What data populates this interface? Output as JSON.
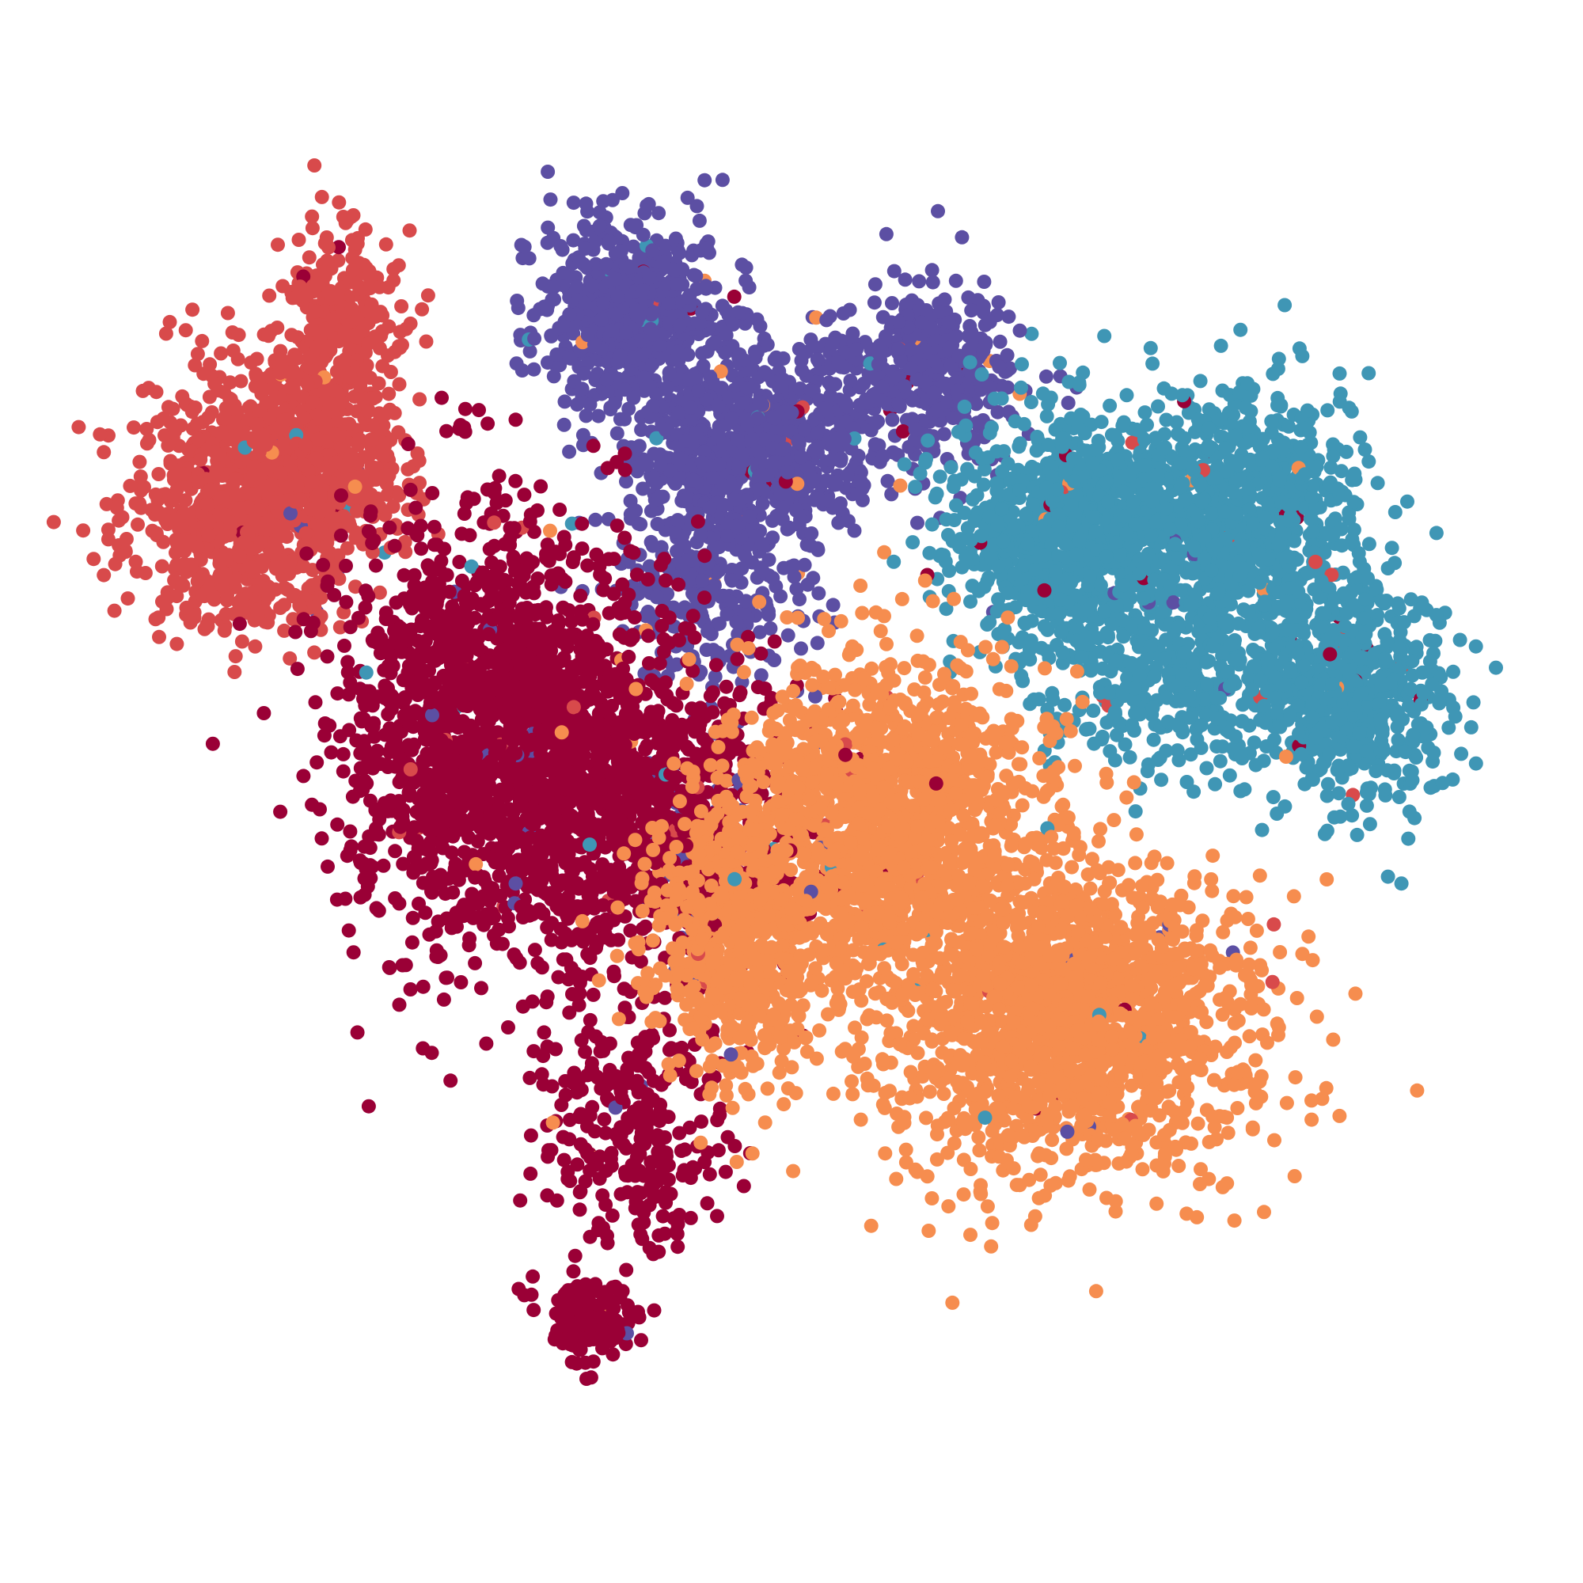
{
  "chart_data": {
    "type": "scatter",
    "title": "",
    "xlabel": "",
    "ylabel": "",
    "axes_visible": false,
    "grid": false,
    "legend": "none",
    "xlim": [
      0,
      100
    ],
    "ylim": [
      0,
      100
    ],
    "series": [
      {
        "color": "#d84a4b",
        "approx_point_count": 1500,
        "cluster_blobs": [
          {
            "x": 13.0,
            "y": 71.0,
            "sx": 4.2,
            "sy": 4.5,
            "w": 0.45
          },
          {
            "x": 17.5,
            "y": 73.5,
            "sx": 3.4,
            "sy": 3.6,
            "w": 0.3
          },
          {
            "x": 19.0,
            "y": 83.0,
            "sx": 2.0,
            "sy": 3.0,
            "w": 0.15
          },
          {
            "x": 12.5,
            "y": 65.0,
            "sx": 3.5,
            "sy": 2.5,
            "w": 0.1
          }
        ]
      },
      {
        "color": "#5c4fa3",
        "approx_point_count": 2200,
        "cluster_blobs": [
          {
            "x": 39.0,
            "y": 83.0,
            "sx": 3.2,
            "sy": 3.2,
            "w": 0.3
          },
          {
            "x": 47.0,
            "y": 73.5,
            "sx": 4.2,
            "sy": 3.8,
            "w": 0.35
          },
          {
            "x": 59.0,
            "y": 78.5,
            "sx": 3.5,
            "sy": 3.0,
            "w": 0.2
          },
          {
            "x": 44.0,
            "y": 64.0,
            "sx": 3.5,
            "sy": 3.0,
            "w": 0.1
          },
          {
            "x": 43.0,
            "y": 48.0,
            "sx": 2.5,
            "sy": 5.0,
            "w": 0.05
          }
        ]
      },
      {
        "color": "#3f96b5",
        "approx_point_count": 2800,
        "cluster_blobs": [
          {
            "x": 69.0,
            "y": 67.5,
            "sx": 4.0,
            "sy": 4.0,
            "w": 0.3
          },
          {
            "x": 80.0,
            "y": 68.5,
            "sx": 4.5,
            "sy": 4.5,
            "w": 0.35
          },
          {
            "x": 87.5,
            "y": 57.0,
            "sx": 3.5,
            "sy": 4.0,
            "w": 0.25
          },
          {
            "x": 76.0,
            "y": 57.0,
            "sx": 4.0,
            "sy": 3.0,
            "w": 0.1
          }
        ]
      },
      {
        "color": "#9a0036",
        "approx_point_count": 3000,
        "cluster_blobs": [
          {
            "x": 29.5,
            "y": 54.0,
            "sx": 5.0,
            "sy": 7.5,
            "w": 0.55
          },
          {
            "x": 40.0,
            "y": 49.0,
            "sx": 5.0,
            "sy": 6.0,
            "w": 0.3
          },
          {
            "x": 39.0,
            "y": 27.0,
            "sx": 3.0,
            "sy": 4.5,
            "w": 0.1
          },
          {
            "x": 36.0,
            "y": 14.0,
            "sx": 1.5,
            "sy": 1.5,
            "w": 0.05
          }
        ]
      },
      {
        "color": "#f68d4f",
        "approx_point_count": 3800,
        "cluster_blobs": [
          {
            "x": 56.5,
            "y": 47.5,
            "sx": 5.5,
            "sy": 6.0,
            "w": 0.4
          },
          {
            "x": 69.5,
            "y": 34.0,
            "sx": 6.5,
            "sy": 5.5,
            "w": 0.45
          },
          {
            "x": 46.0,
            "y": 40.0,
            "sx": 3.0,
            "sy": 5.0,
            "w": 0.15
          }
        ]
      }
    ],
    "colors": {
      "red": "#d84a4b",
      "purple": "#5c4fa3",
      "teal": "#3f96b5",
      "crimson": "#9a0036",
      "orange": "#f68d4f"
    }
  }
}
